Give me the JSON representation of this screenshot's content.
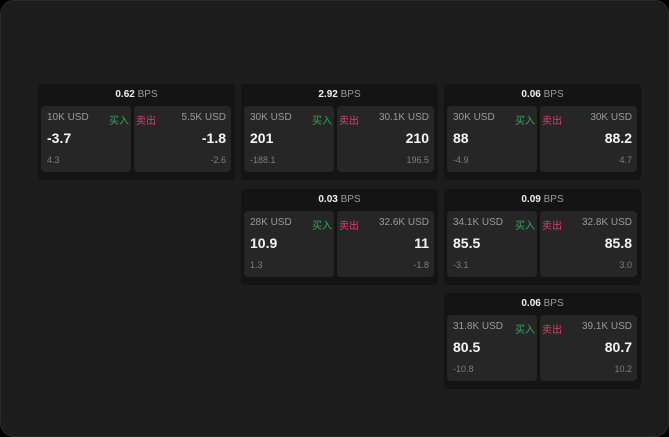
{
  "unit": "BPS",
  "buy_label": "买入",
  "sell_label": "卖出",
  "colors": {
    "buy": "#2fa85a",
    "sell": "#d9406a"
  },
  "panels": [
    {
      "spread": "0.62",
      "bid": {
        "size": "10K USD",
        "price": "-3.7",
        "change": "4.3"
      },
      "ask": {
        "size": "5.5K USD",
        "price": "-1.8",
        "change": "-2.6"
      }
    },
    {
      "spread": "2.92",
      "bid": {
        "size": "30K USD",
        "price": "201",
        "change": "-188.1"
      },
      "ask": {
        "size": "30.1K USD",
        "price": "210",
        "change": "196.5"
      }
    },
    {
      "spread": "0.06",
      "bid": {
        "size": "30K USD",
        "price": "88",
        "change": "-4.9"
      },
      "ask": {
        "size": "30K USD",
        "price": "88.2",
        "change": "4.7"
      }
    },
    {
      "spread": "0.03",
      "bid": {
        "size": "28K USD",
        "price": "10.9",
        "change": "1.3"
      },
      "ask": {
        "size": "32.6K USD",
        "price": "11",
        "change": "-1.8"
      }
    },
    {
      "spread": "0.09",
      "bid": {
        "size": "34.1K USD",
        "price": "85.5",
        "change": "-3.1"
      },
      "ask": {
        "size": "32.8K USD",
        "price": "85.8",
        "change": "3.0"
      }
    },
    {
      "spread": "0.06",
      "bid": {
        "size": "31.8K USD",
        "price": "80.5",
        "change": "-10.8"
      },
      "ask": {
        "size": "39.1K USD",
        "price": "80.7",
        "change": "10.2"
      }
    }
  ]
}
